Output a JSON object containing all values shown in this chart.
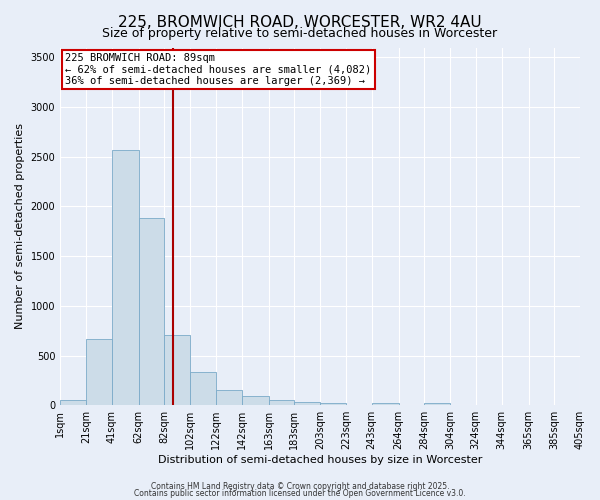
{
  "title": "225, BROMWICH ROAD, WORCESTER, WR2 4AU",
  "subtitle": "Size of property relative to semi-detached houses in Worcester",
  "xlabel": "Distribution of semi-detached houses by size in Worcester",
  "ylabel": "Number of semi-detached properties",
  "bin_labels": [
    "1sqm",
    "21sqm",
    "41sqm",
    "62sqm",
    "82sqm",
    "102sqm",
    "122sqm",
    "142sqm",
    "163sqm",
    "183sqm",
    "203sqm",
    "223sqm",
    "243sqm",
    "264sqm",
    "284sqm",
    "304sqm",
    "324sqm",
    "344sqm",
    "365sqm",
    "385sqm",
    "405sqm"
  ],
  "bin_edges": [
    1,
    21,
    41,
    62,
    82,
    102,
    122,
    142,
    163,
    183,
    203,
    223,
    243,
    264,
    284,
    304,
    324,
    344,
    365,
    385,
    405
  ],
  "values": [
    55,
    665,
    2570,
    1880,
    710,
    330,
    150,
    90,
    50,
    30,
    20,
    0,
    25,
    0,
    25,
    0,
    0,
    0,
    0,
    0
  ],
  "bar_color": "#ccdce8",
  "bar_edge_color": "#7aaac8",
  "property_line_x": 89,
  "annotation_line1": "225 BROMWICH ROAD: 89sqm",
  "annotation_line2": "← 62% of semi-detached houses are smaller (4,082)",
  "annotation_line3": "36% of semi-detached houses are larger (2,369) →",
  "annotation_box_color": "#ffffff",
  "annotation_box_edge": "#cc0000",
  "vline_color": "#aa0000",
  "footnote1": "Contains HM Land Registry data © Crown copyright and database right 2025.",
  "footnote2": "Contains public sector information licensed under the Open Government Licence v3.0.",
  "ylim": [
    0,
    3600
  ],
  "yticks": [
    0,
    500,
    1000,
    1500,
    2000,
    2500,
    3000,
    3500
  ],
  "background_color": "#e8eef8",
  "grid_color": "#ffffff",
  "title_fontsize": 11,
  "subtitle_fontsize": 9,
  "axis_label_fontsize": 8,
  "tick_fontsize": 7,
  "annotation_fontsize": 7.5,
  "footnote_fontsize": 5.5
}
